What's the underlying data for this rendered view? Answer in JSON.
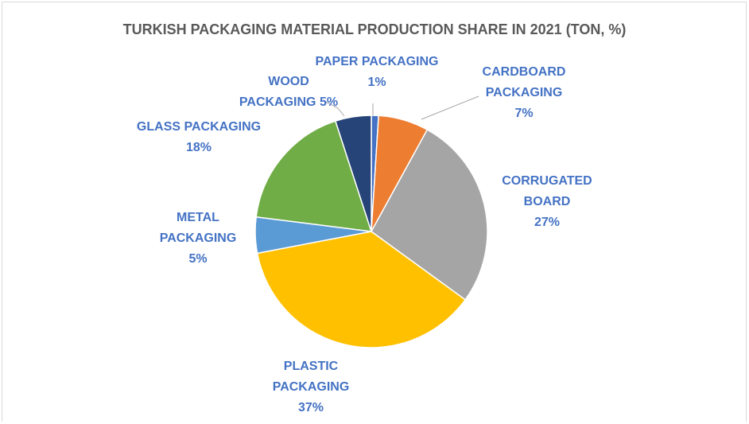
{
  "chart_data": {
    "type": "pie",
    "title": "TURKISH PACKAGING MATERIAL PRODUCTION SHARE IN 2021 (TON, %)",
    "slices": [
      {
        "key": "paper",
        "label_lines": [
          "PAPER PACKAGING",
          "1%"
        ],
        "value": 1,
        "color": "#4472c4"
      },
      {
        "key": "cardboard",
        "label_lines": [
          "CARDBOARD",
          "PACKAGING",
          "7%"
        ],
        "value": 7,
        "color": "#ed7d31"
      },
      {
        "key": "corrugated",
        "label_lines": [
          "CORRUGATED",
          "BOARD",
          "27%"
        ],
        "value": 27,
        "color": "#a5a5a5"
      },
      {
        "key": "plastic",
        "label_lines": [
          "PLASTIC",
          "PACKAGING",
          "37%"
        ],
        "value": 37,
        "color": "#ffc000"
      },
      {
        "key": "metal",
        "label_lines": [
          "METAL",
          "PACKAGING",
          "5%"
        ],
        "value": 5,
        "color": "#5b9bd5"
      },
      {
        "key": "glass",
        "label_lines": [
          "GLASS PACKAGING",
          "18%"
        ],
        "value": 18,
        "color": "#70ad47"
      },
      {
        "key": "wood",
        "label_lines": [
          "WOOD",
          "PACKAGING 5%"
        ],
        "value": 5,
        "color": "#264478"
      }
    ],
    "label_color": "#4472c4",
    "legend": "none"
  }
}
